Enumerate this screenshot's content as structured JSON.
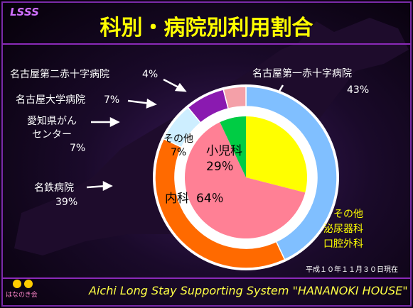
{
  "header": "LSSS",
  "title": "科別・病院別利用割合",
  "chart_data": [
    {
      "type": "donut",
      "categories": [
        "名古屋第一赤十字病院",
        "名鉄病院",
        "愛知県がん\nセンター",
        "名古屋大学病院",
        "名古屋第二赤十字病院"
      ],
      "values": [
        43,
        39,
        7,
        7,
        4
      ],
      "value_labels": [
        "43%",
        "39%",
        "7%",
        "7%",
        "4%"
      ],
      "colors": [
        "#80bfff",
        "#ff6a00",
        "#cdeeff",
        "#8a1ab0",
        "#f4a0a8"
      ]
    },
    {
      "type": "pie",
      "categories": [
        "小児科",
        "内科",
        "その他"
      ],
      "values": [
        29,
        64,
        7
      ],
      "value_labels": [
        "29％",
        "64％",
        "7%"
      ],
      "colors": [
        "#ffff00",
        "#ff8095",
        "#00cc44"
      ]
    }
  ],
  "note": "その他\n泌尿器科\n口腔外科",
  "date": "平成１０年１１月３０日現在",
  "logo": "はなのき会",
  "footer": "Aichi Long Stay Supporting System  \"HANANOKI HOUSE\""
}
